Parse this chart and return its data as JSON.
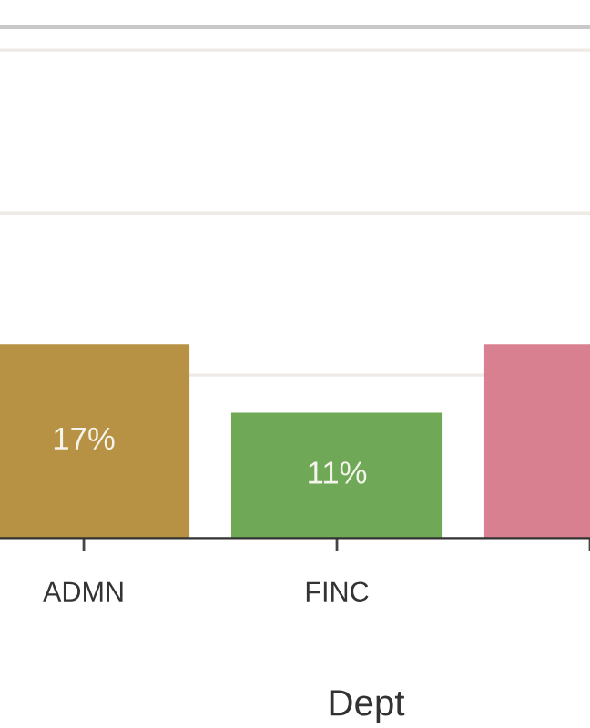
{
  "chart_data": {
    "type": "bar",
    "xlabel": "Dept",
    "categories": [
      "ADMN",
      "FINC",
      null
    ],
    "values": [
      17,
      11,
      17
    ],
    "colors": [
      "#b79244",
      "#6fa957",
      "#d87f90"
    ],
    "value_labels": [
      "17%",
      "11%",
      null
    ],
    "ylim": [
      0,
      44.8
    ],
    "yticks": [
      {
        "value": 14.3,
        "label": null
      },
      {
        "value": 28.5,
        "label": null
      },
      {
        "value": 42.8,
        "label": null
      }
    ],
    "grid": "y",
    "tick_labels": "x"
  }
}
